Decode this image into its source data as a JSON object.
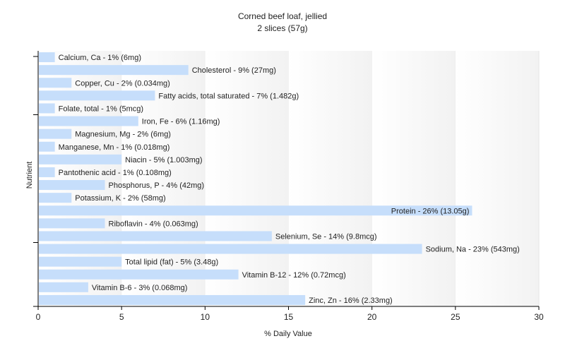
{
  "chart_data": {
    "type": "bar",
    "orientation": "horizontal",
    "title": "Corned beef loaf, jellied",
    "subtitle": "2 slices (57g)",
    "xlabel": "% Daily Value",
    "ylabel": "Nutrient",
    "xlim": [
      0,
      30
    ],
    "xticks": [
      0,
      5,
      10,
      15,
      20,
      25,
      30
    ],
    "grid": "vertical bands",
    "colors": {
      "bar": "#c6defb",
      "band": "#f2f2f2",
      "axis": "#000000"
    },
    "categories": [
      "Calcium, Ca",
      "Cholesterol",
      "Copper, Cu",
      "Fatty acids, total saturated",
      "Folate, total",
      "Iron, Fe",
      "Magnesium, Mg",
      "Manganese, Mn",
      "Niacin",
      "Pantothenic acid",
      "Phosphorus, P",
      "Potassium, K",
      "Protein",
      "Riboflavin",
      "Selenium, Se",
      "Sodium, Na",
      "Total lipid (fat)",
      "Vitamin B-12",
      "Vitamin B-6",
      "Zinc, Zn"
    ],
    "values": [
      1,
      9,
      2,
      7,
      1,
      6,
      2,
      1,
      5,
      1,
      4,
      2,
      26,
      4,
      14,
      23,
      5,
      12,
      3,
      16
    ],
    "labels": [
      "Calcium, Ca - 1% (6mg)",
      "Cholesterol - 9% (27mg)",
      "Copper, Cu - 2% (0.034mg)",
      "Fatty acids, total saturated - 7% (1.482g)",
      "Folate, total - 1% (5mcg)",
      "Iron, Fe - 6% (1.16mg)",
      "Magnesium, Mg - 2% (6mg)",
      "Manganese, Mn - 1% (0.018mg)",
      "Niacin - 5% (1.003mg)",
      "Pantothenic acid - 1% (0.108mg)",
      "Phosphorus, P - 4% (42mg)",
      "Potassium, K - 2% (58mg)",
      "Protein - 26% (13.05g)",
      "Riboflavin - 4% (0.063mg)",
      "Selenium, Se - 14% (9.8mcg)",
      "Sodium, Na - 23% (543mg)",
      "Total lipid (fat) - 5% (3.48g)",
      "Vitamin B-12 - 12% (0.72mcg)",
      "Vitamin B-6 - 3% (0.068mg)",
      "Zinc, Zn - 16% (2.33mg)"
    ]
  }
}
